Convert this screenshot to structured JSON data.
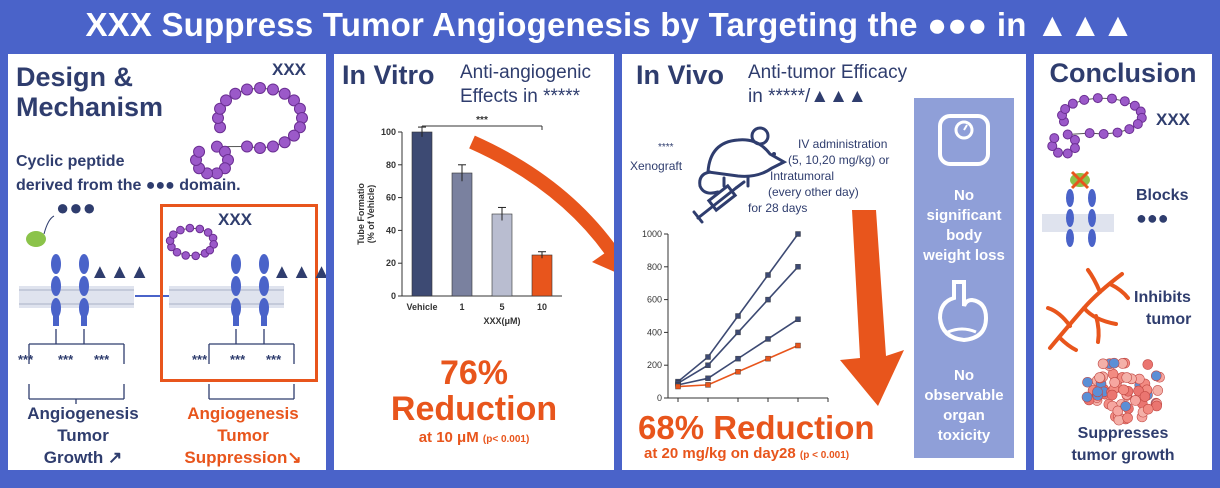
{
  "title": "XXX Suppress Tumor Angiogenesis by Targeting the ●●● in ▲▲▲",
  "design": {
    "heading_line1": "Design &",
    "heading_line2": "Mechanism",
    "peptide_label": "XXX",
    "description_line1": "Cyclic peptide",
    "description_line2": "derived from the ●●● domain.",
    "ligand_label": "●●●",
    "receptor_label_left": "▲▲▲",
    "receptor_label_right": "▲▲▲",
    "peptide_label_small": "XXX",
    "stars_left": [
      "***",
      "***",
      "***"
    ],
    "stars_right": [
      "***",
      "***",
      "***"
    ],
    "left_outcome": [
      "Angiogenesis",
      "Tumor",
      "Growth ↗"
    ],
    "right_outcome": [
      "Angiogenesis",
      "Tumor",
      "Suppression↘"
    ]
  },
  "invitro": {
    "heading": "In Vitro",
    "subtitle_line1": "Anti-angiogenic",
    "subtitle_line2": "Effects in *****",
    "significance": "***",
    "big_percent": "76%",
    "big_word": "Reduction",
    "detail": "at 10 μM",
    "pvalue": "(p< 0.001)"
  },
  "invivo": {
    "heading": "In Vivo",
    "subtitle_line1": "Anti-tumor Efficacy",
    "subtitle_line2": "in *****/▲▲▲",
    "xenograft_stars": "****",
    "xenograft": "Xenograft",
    "admin_lines": [
      "IV administration",
      "(5, 10,20 mg/kg) or",
      "Intratumoral",
      "(every other day)",
      "for 28 days"
    ],
    "big_text": "68% Reduction",
    "detail": "at 20 mg/kg on day28",
    "pvalue": "(p < 0.001)",
    "side_text1": [
      "No",
      "significant",
      "body",
      "weight loss"
    ],
    "side_text2": [
      "No",
      "observable",
      "organ",
      "toxicity"
    ]
  },
  "conclusion": {
    "heading": "Conclusion",
    "peptide_label": "XXX",
    "blocks_line1": "Blocks",
    "blocks_line2": "●●●",
    "inhibits_line1": "Inhibits",
    "inhibits_line2": "tumor",
    "suppress_line1": "Suppresses",
    "suppress_line2": "tumor growth"
  },
  "colors": {
    "background": "#4a63c9",
    "navy": "#2f3d6e",
    "orange": "#e8551c",
    "purple": "#9b59c9",
    "side_box": "#8f9fd8"
  },
  "chart_data": [
    {
      "type": "bar",
      "ylabel": "Tube Formatio (% of Vehicle)",
      "xlabel": "XXX(μM)",
      "categories": [
        "Vehicle",
        "1",
        "5",
        "10"
      ],
      "values": [
        100,
        75,
        50,
        25
      ],
      "errors": [
        3,
        5,
        4,
        2
      ],
      "bar_colors": [
        "#3d4a73",
        "#7a819f",
        "#b9bdd0",
        "#e8551c"
      ],
      "ylim": [
        0,
        100
      ],
      "yticks": [
        0,
        20,
        40,
        60,
        80,
        100
      ]
    },
    {
      "type": "line",
      "x": [
        1,
        2,
        3,
        4,
        5,
        6
      ],
      "ylim": [
        0,
        1000
      ],
      "yticks": [
        0,
        200,
        400,
        600,
        800,
        1000
      ],
      "series": [
        {
          "values": [
            100,
            250,
            500,
            750,
            1000,
            null
          ],
          "color": "#3d4a73"
        },
        {
          "values": [
            90,
            200,
            400,
            600,
            800,
            null
          ],
          "color": "#3d4a73"
        },
        {
          "values": [
            80,
            120,
            240,
            360,
            480,
            null
          ],
          "color": "#3d4a73"
        },
        {
          "values": [
            70,
            80,
            160,
            240,
            320,
            null
          ],
          "color": "#e8551c"
        }
      ]
    }
  ]
}
